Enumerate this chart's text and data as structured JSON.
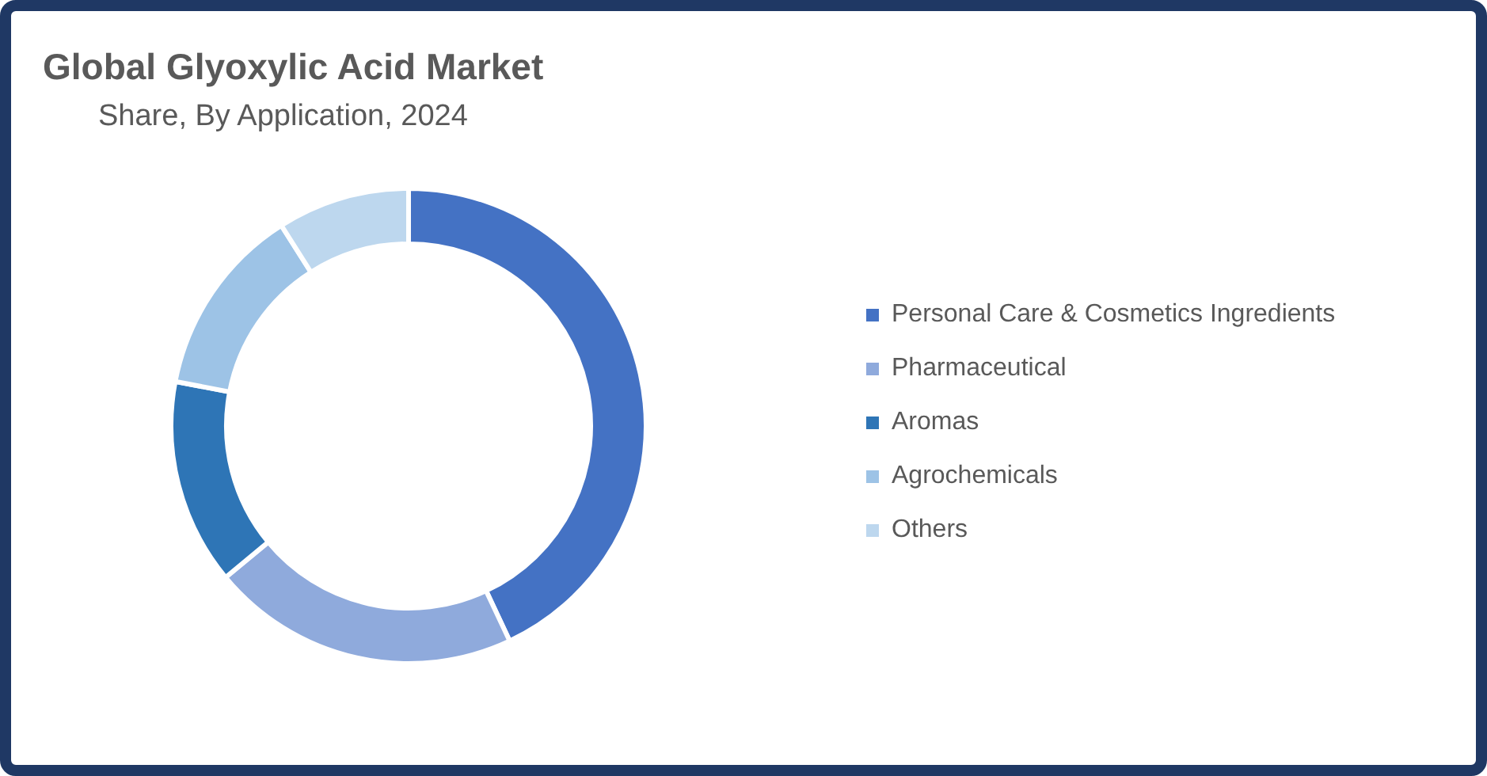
{
  "chart_data": {
    "type": "donut",
    "title": "Global Glyoxylic Acid Market",
    "subtitle": "Share, By Application, 2024",
    "categories": [
      "Personal Care & Cosmetics Ingredients",
      "Pharmaceutical",
      "Aromas",
      "Agrochemicals",
      "Others"
    ],
    "values": [
      43,
      21,
      14,
      13,
      9
    ],
    "colors": [
      "#4472c4",
      "#8faadc",
      "#2e75b6",
      "#9dc3e6",
      "#bdd7ee"
    ],
    "legend": "right"
  }
}
